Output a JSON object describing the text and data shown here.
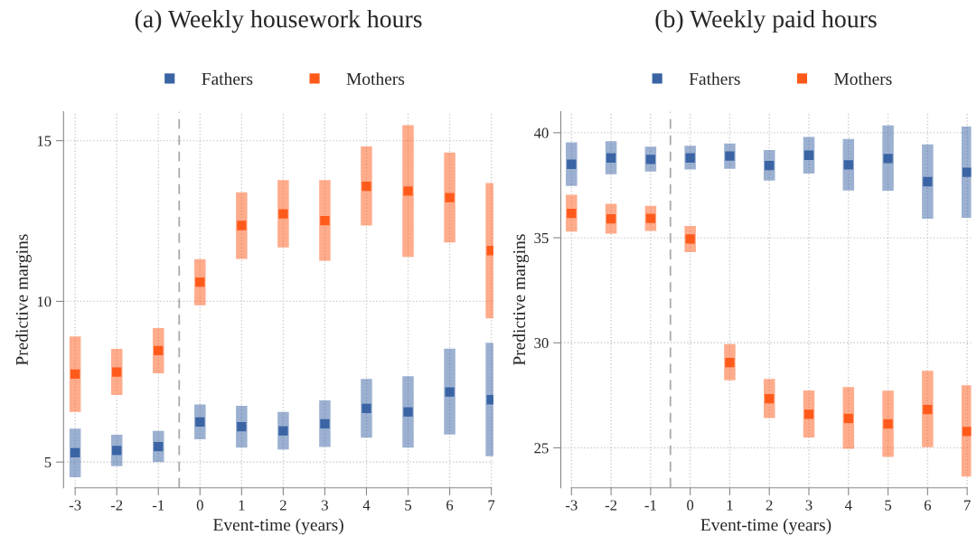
{
  "chart_data": [
    {
      "type": "scatter",
      "title": "(a) Weekly housework hours",
      "xlabel": "Event-time (years)",
      "ylabel": "Predictive margins",
      "x": [
        -3,
        -2,
        -1,
        0,
        1,
        2,
        3,
        4,
        5,
        6,
        7
      ],
      "series": [
        {
          "name": "Fathers",
          "color": "#3a64a4",
          "values": [
            5.29,
            5.36,
            5.48,
            6.25,
            6.1,
            5.97,
            6.19,
            6.67,
            6.56,
            7.18,
            6.94
          ],
          "errors": [
            [
              4.53,
              6.04
            ],
            [
              4.87,
              5.85
            ],
            [
              5.0,
              5.97
            ],
            [
              5.71,
              6.79
            ],
            [
              5.45,
              6.75
            ],
            [
              5.39,
              6.56
            ],
            [
              5.47,
              6.92
            ],
            [
              5.76,
              7.59
            ],
            [
              5.45,
              7.67
            ],
            [
              5.86,
              8.53
            ],
            [
              5.18,
              8.71
            ]
          ]
        },
        {
          "name": "Mothers",
          "color": "#ff5a1a",
          "values": [
            7.74,
            7.8,
            8.47,
            10.6,
            12.36,
            12.72,
            12.51,
            13.58,
            13.43,
            13.23,
            11.58
          ],
          "errors": [
            [
              6.56,
              8.91
            ],
            [
              7.09,
              8.52
            ],
            [
              7.76,
              9.17
            ],
            [
              9.88,
              11.31
            ],
            [
              11.32,
              13.39
            ],
            [
              11.68,
              13.77
            ],
            [
              11.26,
              13.77
            ],
            [
              12.36,
              14.82
            ],
            [
              11.38,
              15.48
            ],
            [
              11.83,
              14.63
            ],
            [
              9.47,
              13.68
            ]
          ]
        }
      ],
      "xlim": [
        -3.28,
        7.05
      ],
      "xticks": [
        -3,
        -2,
        -1,
        0,
        1,
        2,
        3,
        4,
        5,
        6,
        7
      ],
      "ylim": [
        4.2,
        15.9
      ],
      "yticks": [
        5,
        10,
        15
      ],
      "ref_lines": [
        {
          "axis": "x",
          "value": -0.5,
          "line_style": "dashed",
          "color": "#aaaaaa"
        }
      ],
      "grid": true,
      "legend": "top",
      "marker": "square"
    },
    {
      "type": "scatter",
      "title": "(b) Weekly paid hours",
      "xlabel": "Event-time (years)",
      "ylabel": "Predictive margins",
      "x": [
        -3,
        -2,
        -1,
        0,
        1,
        2,
        3,
        4,
        5,
        6,
        7
      ],
      "series": [
        {
          "name": "Fathers",
          "color": "#3a64a4",
          "values": [
            38.5,
            38.8,
            38.73,
            38.8,
            38.89,
            38.44,
            38.93,
            38.47,
            38.77,
            37.67,
            38.12
          ],
          "errors": [
            [
              37.47,
              39.54
            ],
            [
              38.03,
              39.6
            ],
            [
              38.15,
              39.34
            ],
            [
              38.25,
              39.38
            ],
            [
              38.28,
              39.49
            ],
            [
              37.72,
              39.18
            ],
            [
              38.06,
              39.8
            ],
            [
              37.25,
              39.7
            ],
            [
              37.24,
              40.35
            ],
            [
              35.91,
              39.45
            ],
            [
              35.95,
              40.3
            ]
          ]
        },
        {
          "name": "Mothers",
          "color": "#ff5a1a",
          "values": [
            36.16,
            35.9,
            35.92,
            34.94,
            29.06,
            27.34,
            26.6,
            26.4,
            26.14,
            26.82,
            25.78
          ],
          "errors": [
            [
              35.29,
              37.05
            ],
            [
              35.2,
              36.62
            ],
            [
              35.33,
              36.52
            ],
            [
              34.32,
              35.56
            ],
            [
              28.22,
              29.94
            ],
            [
              26.42,
              28.28
            ],
            [
              25.49,
              27.73
            ],
            [
              24.96,
              27.89
            ],
            [
              24.57,
              27.72
            ],
            [
              25.03,
              28.67
            ],
            [
              23.63,
              27.98
            ]
          ]
        }
      ],
      "xlim": [
        -3.27,
        7.1
      ],
      "xticks": [
        -3,
        -2,
        -1,
        0,
        1,
        2,
        3,
        4,
        5,
        6,
        7
      ],
      "ylim": [
        23.1,
        41.0
      ],
      "yticks": [
        25,
        30,
        35,
        40
      ],
      "ref_lines": [
        {
          "axis": "x",
          "value": -0.5,
          "line_style": "dashed",
          "color": "#aaaaaa"
        }
      ],
      "grid": true,
      "legend": "top",
      "marker": "square"
    }
  ]
}
